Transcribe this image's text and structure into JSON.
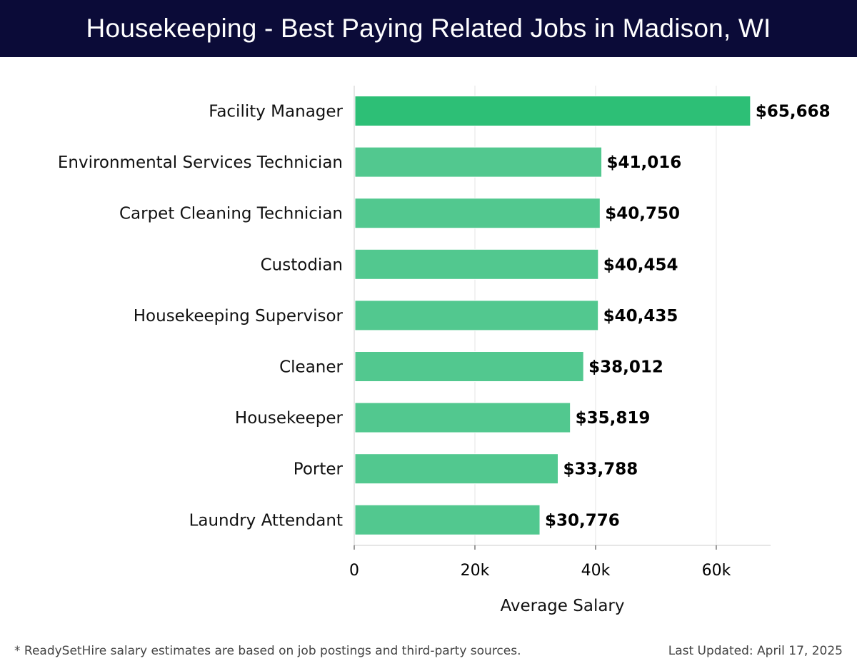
{
  "header": {
    "title": "Housekeeping - Best Paying Related Jobs in Madison, WI"
  },
  "chart_data": {
    "type": "bar",
    "orientation": "horizontal",
    "categories": [
      "Facility Manager",
      "Environmental Services Technician",
      "Carpet Cleaning Technician",
      "Custodian",
      "Housekeeping Supervisor",
      "Cleaner",
      "Housekeeper",
      "Porter",
      "Laundry Attendant"
    ],
    "values": [
      65668,
      41016,
      40750,
      40454,
      40435,
      38012,
      35819,
      33788,
      30776
    ],
    "value_labels": [
      "$65,668",
      "$41,016",
      "$40,750",
      "$40,454",
      "$40,435",
      "$38,012",
      "$35,819",
      "$33,788",
      "$30,776"
    ],
    "xlabel": "Average Salary",
    "ylabel": "",
    "xlim": [
      0,
      69000
    ],
    "x_ticks": [
      0,
      20000,
      40000,
      60000
    ],
    "x_tick_labels": [
      "0",
      "20k",
      "40k",
      "60k"
    ],
    "grid": "vertical",
    "colors": {
      "top_bar": "#2dbf76",
      "bar": "#52c88f",
      "grid": "#e6e6e6",
      "axis": "#cccccc"
    }
  },
  "footer": {
    "note": "* ReadySetHire salary estimates are based on job postings and third-party sources.",
    "last_updated": "Last Updated: April 17, 2025"
  }
}
